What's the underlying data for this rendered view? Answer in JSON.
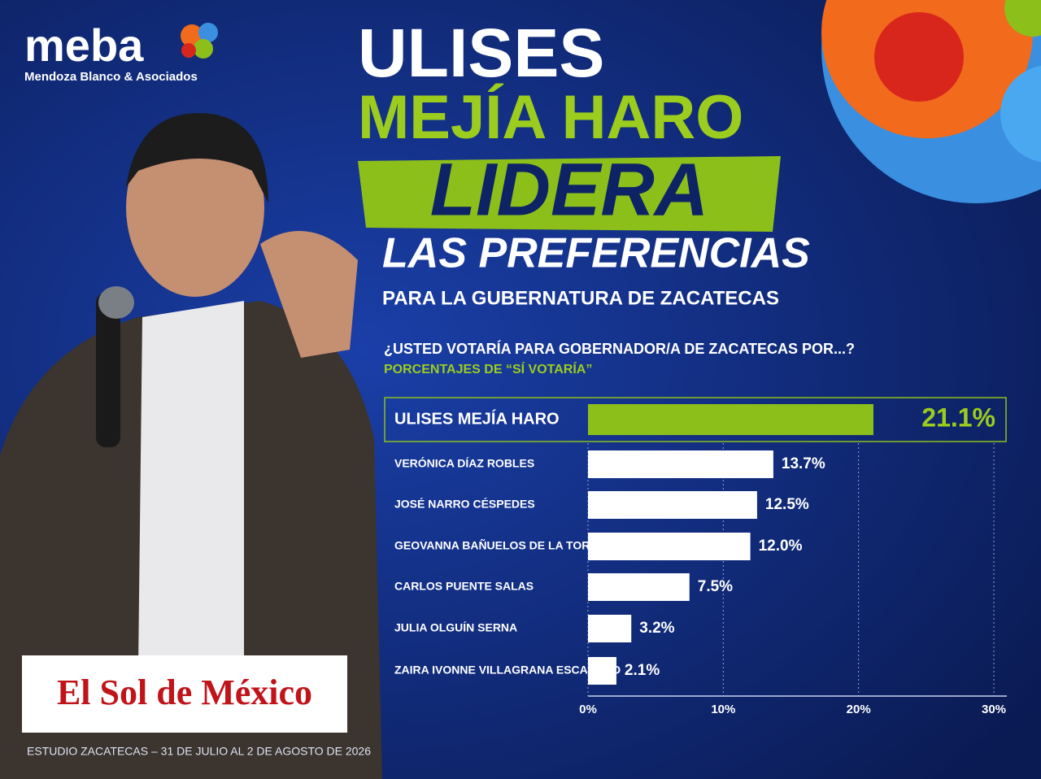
{
  "brand": {
    "name": "meba",
    "tagline": "Mendoza Blanco & Asociados"
  },
  "headline": {
    "line1": "ULISES",
    "line2": "MEJÍA HARO",
    "line3": "LIDERA",
    "line4": "LAS PREFERENCIAS",
    "line5": "PARA LA GUBERNATURA DE ZACATECAS"
  },
  "media": "El Sol de México",
  "footer": "ESTUDIO ZACATECAS – 31 DE JULIO AL 2 DE AGOSTO DE 2026",
  "chart_data": {
    "type": "hbar",
    "title": "¿USTED VOTARÍA PARA GOBERNADOR/A DE ZACATECAS POR...?",
    "subtitle": "PORCENTAJES DE “SÍ VOTARÍA”",
    "categories": [
      "ULISES MEJÍA HARO",
      "VERÓNICA DÍAZ ROBLES",
      "JOSÉ NARRO CÉSPEDES",
      "GEOVANNA BAÑUELOS DE LA TORRE",
      "CARLOS PUENTE SALAS",
      "JULIA OLGUÍN SERNA",
      "ZAIRA IVONNE VILLAGRANA ESCAREÑO"
    ],
    "values": [
      21.1,
      13.7,
      12.5,
      12.0,
      7.5,
      3.2,
      2.1
    ],
    "value_labels": [
      "21.1%",
      "13.7%",
      "12.5%",
      "12.0%",
      "7.5%",
      "3.2%",
      "2.1%"
    ],
    "colors": [
      "#8dbf1b",
      "#ffffff",
      "#ffffff",
      "#ffffff",
      "#ffffff",
      "#ffffff",
      "#ffffff"
    ],
    "xlim": [
      0,
      30
    ],
    "xticks": [
      {
        "value": 0,
        "label": "0%"
      },
      {
        "value": 10,
        "label": "10%"
      },
      {
        "value": 20,
        "label": "20%"
      },
      {
        "value": 30,
        "label": "30%"
      }
    ],
    "grid": true
  }
}
